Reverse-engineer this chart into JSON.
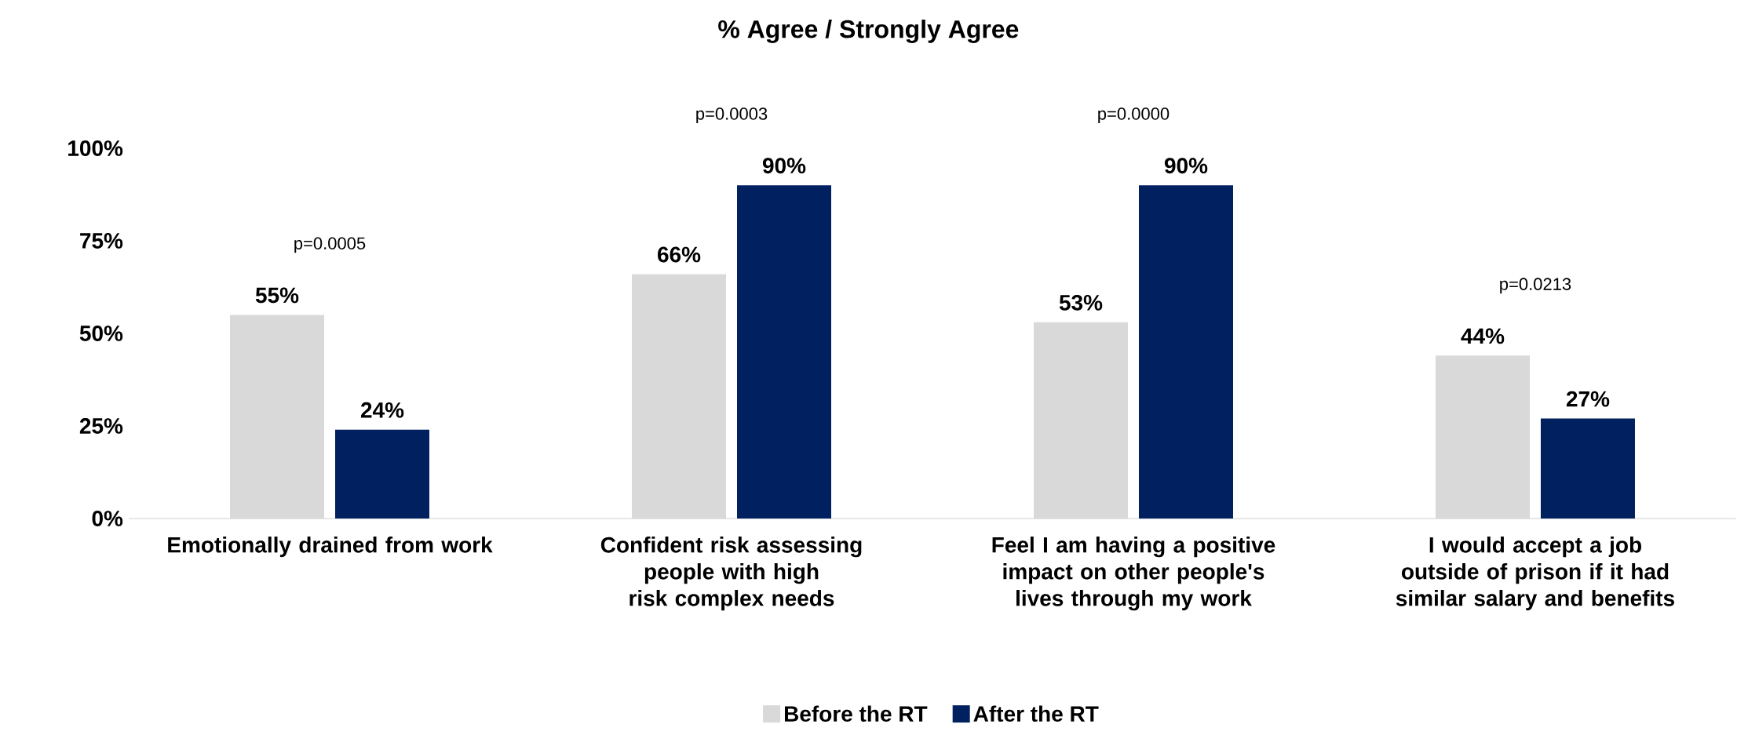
{
  "chart_data": {
    "type": "bar",
    "title": "% Agree / Strongly Agree",
    "categories": [
      "Emotionally drained from work",
      "Confident risk assessing people with high risk complex needs",
      "Feel I am having a positive impact on other people's lives through my work",
      "I would accept a job outside of prison if it had similar salary and benefits"
    ],
    "series": [
      {
        "name": "Before the RT",
        "color": "#d9d9d9",
        "values": [
          55,
          66,
          53,
          44
        ],
        "value_labels": [
          "55%",
          "66%",
          "53%",
          "44%"
        ]
      },
      {
        "name": "After the RT",
        "color": "#002060",
        "values": [
          24,
          90,
          90,
          27
        ],
        "value_labels": [
          "24%",
          "90%",
          "90%",
          "27%"
        ]
      }
    ],
    "ylim": [
      0,
      100
    ],
    "yticks": [
      {
        "value": 0,
        "label": "0%"
      },
      {
        "value": 25,
        "label": "25%"
      },
      {
        "value": 50,
        "label": "50%"
      },
      {
        "value": 75,
        "label": "75%"
      },
      {
        "value": 100,
        "label": "100%"
      }
    ],
    "annotations": [
      "p=0.0005",
      "p=0.0003",
      "p=0.0000",
      "p=0.0213"
    ],
    "legend": "bottom",
    "grid": false
  }
}
